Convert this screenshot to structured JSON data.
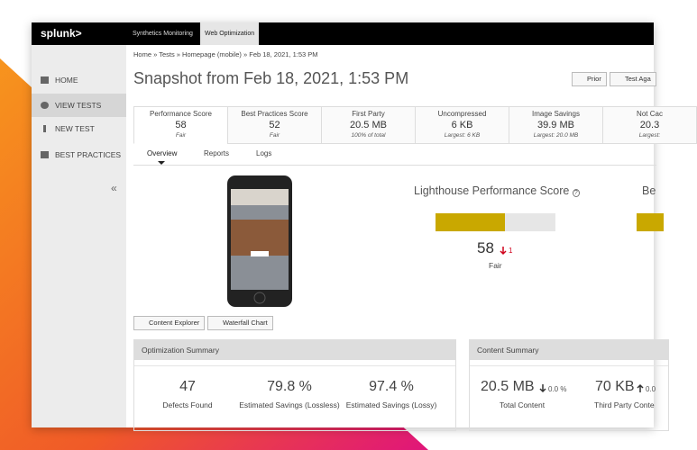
{
  "header": {
    "logo": "splunk>",
    "tabs": [
      "Synthetics Monitoring",
      "Web Optimization"
    ]
  },
  "sidebar": {
    "items": [
      "HOME",
      "VIEW TESTS",
      "NEW TEST",
      "BEST PRACTICES"
    ],
    "collapse": "«"
  },
  "breadcrumb": "Home » Tests » Homepage (mobile) » Feb 18, 2021, 1:53 PM",
  "title": "Snapshot from Feb 18, 2021, 1:53 PM",
  "buttons": [
    "Prior",
    "Test Aga"
  ],
  "metrics": [
    {
      "label": "Performance Score",
      "value": "58",
      "note": "Fair"
    },
    {
      "label": "Best Practices Score",
      "value": "52",
      "note": "Fair"
    },
    {
      "label": "First Party",
      "value": "20.5 MB",
      "note": "100% of total"
    },
    {
      "label": "Uncompressed",
      "value": "6 KB",
      "note": "Largest: 6 KB"
    },
    {
      "label": "Image Savings",
      "value": "39.9 MB",
      "note": "Largest: 20.0 MB"
    },
    {
      "label": "Not Cac",
      "value": "20.3",
      "note": "Largest:"
    }
  ],
  "subtabs": [
    "Overview",
    "Reports",
    "Logs"
  ],
  "lighthouse": {
    "title": "Lighthouse Performance Score",
    "score": 58,
    "change": 1,
    "rating": "Fair"
  },
  "second_panel_title": "Be",
  "view_buttons": [
    "Content Explorer",
    "Waterfall Chart"
  ],
  "optimization_summary": {
    "title": "Optimization Summary",
    "stats": [
      {
        "value": "47",
        "label": "Defects Found"
      },
      {
        "value": "79.8 %",
        "label": "Estimated Savings (Lossless)"
      },
      {
        "value": "97.4 %",
        "label": "Estimated Savings (Lossy)"
      }
    ]
  },
  "content_summary": {
    "title": "Content Summary",
    "stats": [
      {
        "value": "20.5 MB",
        "change": "0.0 %",
        "label": "Total Content"
      },
      {
        "value": "70 KB",
        "change": "0.0",
        "label": "Third Party Conte"
      }
    ]
  }
}
